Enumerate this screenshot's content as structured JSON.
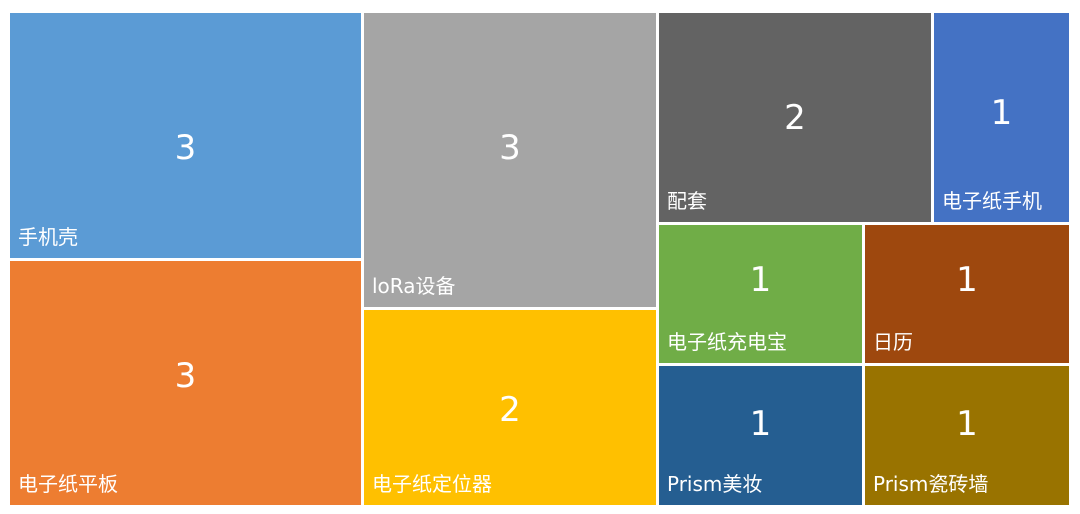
{
  "chart_data": {
    "type": "treemap",
    "items": [
      {
        "name": "手机壳",
        "value": 3,
        "color": "#5B9BD5"
      },
      {
        "name": "电子纸平板",
        "value": 3,
        "color": "#ED7D31"
      },
      {
        "name": "loRa设备",
        "value": 3,
        "color": "#A5A5A5"
      },
      {
        "name": "电子纸定位器",
        "value": 2,
        "color": "#FFC000"
      },
      {
        "name": "配套",
        "value": 2,
        "color": "#636363"
      },
      {
        "name": "电子纸手机",
        "value": 1,
        "color": "#4472C4"
      },
      {
        "name": "电子纸充电宝",
        "value": 1,
        "color": "#70AD47"
      },
      {
        "name": "日历",
        "value": 1,
        "color": "#9E480E"
      },
      {
        "name": "Prism美妆",
        "value": 1,
        "color": "#255E91"
      },
      {
        "name": "Prism瓷砖墙",
        "value": 1,
        "color": "#997300"
      }
    ]
  }
}
